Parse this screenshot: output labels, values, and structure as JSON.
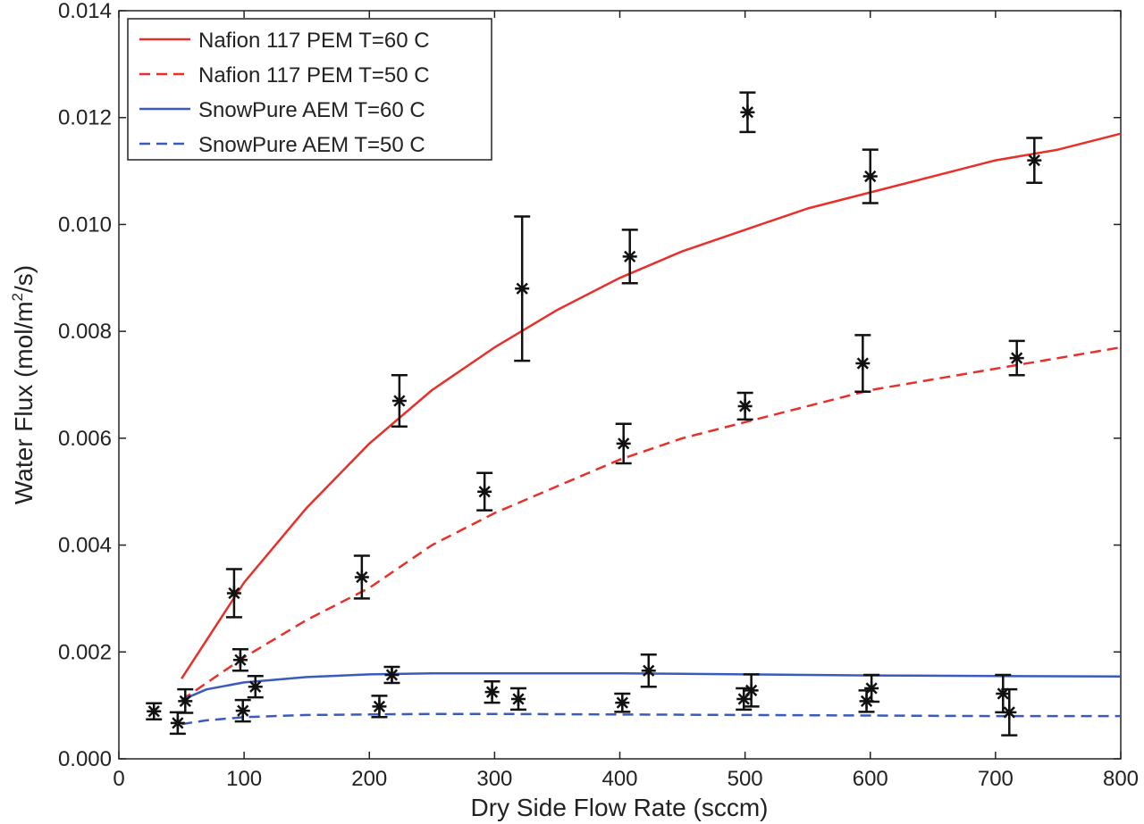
{
  "chart_data": {
    "type": "line",
    "xlabel": "Dry Side Flow Rate (sccm)",
    "ylabel_prefix": "Water Flux (mol/m",
    "ylabel_sup": "2",
    "ylabel_suffix": "/s)",
    "xlim": [
      0,
      800
    ],
    "ylim": [
      0,
      0.014
    ],
    "xticks": [
      0,
      100,
      200,
      300,
      400,
      500,
      600,
      700,
      800
    ],
    "yticks": [
      0,
      0.002,
      0.004,
      0.006,
      0.008,
      0.01,
      0.012,
      0.014
    ],
    "ytick_labels": [
      "0.000",
      "0.002",
      "0.004",
      "0.006",
      "0.008",
      "0.010",
      "0.012",
      "0.014"
    ],
    "legend_position": "top-left",
    "grid": false,
    "series": [
      {
        "name": "Nafion 117 PEM T=60 C",
        "color": "#e8302a",
        "dash": false,
        "x": [
          50,
          100,
          150,
          200,
          250,
          300,
          350,
          400,
          450,
          500,
          550,
          600,
          650,
          700,
          750,
          800
        ],
        "y": [
          0.0015,
          0.0033,
          0.0047,
          0.0059,
          0.0069,
          0.0077,
          0.0084,
          0.009,
          0.0095,
          0.0099,
          0.0103,
          0.0106,
          0.0109,
          0.0112,
          0.0114,
          0.0117
        ]
      },
      {
        "name": "Nafion 117 PEM T=50 C",
        "color": "#e8302a",
        "dash": true,
        "x": [
          50,
          100,
          150,
          200,
          250,
          300,
          350,
          400,
          450,
          500,
          550,
          600,
          650,
          700,
          750,
          800
        ],
        "y": [
          0.0011,
          0.0019,
          0.0026,
          0.0032,
          0.004,
          0.0046,
          0.0051,
          0.0056,
          0.006,
          0.0063,
          0.0066,
          0.0069,
          0.0071,
          0.0073,
          0.0075,
          0.0077
        ]
      },
      {
        "name": "SnowPure AEM T=60 C",
        "color": "#3a5bbd",
        "dash": false,
        "x": [
          50,
          70,
          100,
          150,
          200,
          250,
          300,
          400,
          500,
          600,
          700,
          800
        ],
        "y": [
          0.0011,
          0.0013,
          0.00143,
          0.00153,
          0.00158,
          0.0016,
          0.0016,
          0.0016,
          0.00158,
          0.00156,
          0.00155,
          0.00154
        ]
      },
      {
        "name": "SnowPure AEM T=50 C",
        "color": "#3a5bbd",
        "dash": true,
        "x": [
          50,
          70,
          100,
          150,
          200,
          250,
          300,
          400,
          500,
          600,
          700,
          800
        ],
        "y": [
          0.00065,
          0.00072,
          0.00078,
          0.00082,
          0.00083,
          0.00084,
          0.00084,
          0.00083,
          0.00082,
          0.00081,
          0.0008,
          0.0008
        ]
      }
    ],
    "measurements": [
      {
        "x": 92,
        "y": 0.0031,
        "err": 0.00045
      },
      {
        "x": 194,
        "y": 0.0034,
        "err": 0.0004
      },
      {
        "x": 224,
        "y": 0.0067,
        "err": 0.00048
      },
      {
        "x": 292,
        "y": 0.005,
        "err": 0.00035
      },
      {
        "x": 322,
        "y": 0.0088,
        "err": 0.00135
      },
      {
        "x": 403,
        "y": 0.0059,
        "err": 0.00037
      },
      {
        "x": 408,
        "y": 0.0094,
        "err": 0.0005
      },
      {
        "x": 500,
        "y": 0.0066,
        "err": 0.00025
      },
      {
        "x": 502,
        "y": 0.0121,
        "err": 0.00037
      },
      {
        "x": 594,
        "y": 0.0074,
        "err": 0.00053
      },
      {
        "x": 600,
        "y": 0.0109,
        "err": 0.0005
      },
      {
        "x": 717,
        "y": 0.0075,
        "err": 0.00032
      },
      {
        "x": 731,
        "y": 0.0112,
        "err": 0.00042
      },
      {
        "x": 28,
        "y": 0.00089,
        "err": 0.00015
      },
      {
        "x": 47,
        "y": 0.00067,
        "err": 0.0002
      },
      {
        "x": 53,
        "y": 0.00108,
        "err": 0.00022
      },
      {
        "x": 97,
        "y": 0.00185,
        "err": 0.0002
      },
      {
        "x": 99,
        "y": 0.0009,
        "err": 0.0002
      },
      {
        "x": 109,
        "y": 0.00135,
        "err": 0.0002
      },
      {
        "x": 208,
        "y": 0.00098,
        "err": 0.0002
      },
      {
        "x": 218,
        "y": 0.00157,
        "err": 0.00015
      },
      {
        "x": 298,
        "y": 0.00125,
        "err": 0.0002
      },
      {
        "x": 319,
        "y": 0.00112,
        "err": 0.0002
      },
      {
        "x": 402,
        "y": 0.00105,
        "err": 0.00017
      },
      {
        "x": 423,
        "y": 0.00165,
        "err": 0.0003
      },
      {
        "x": 499,
        "y": 0.00112,
        "err": 0.0002
      },
      {
        "x": 505,
        "y": 0.00128,
        "err": 0.0003
      },
      {
        "x": 597,
        "y": 0.00108,
        "err": 0.0002
      },
      {
        "x": 601,
        "y": 0.00132,
        "err": 0.00025
      },
      {
        "x": 706,
        "y": 0.00122,
        "err": 0.00035
      },
      {
        "x": 711,
        "y": 0.00087,
        "err": 0.00043
      }
    ]
  }
}
